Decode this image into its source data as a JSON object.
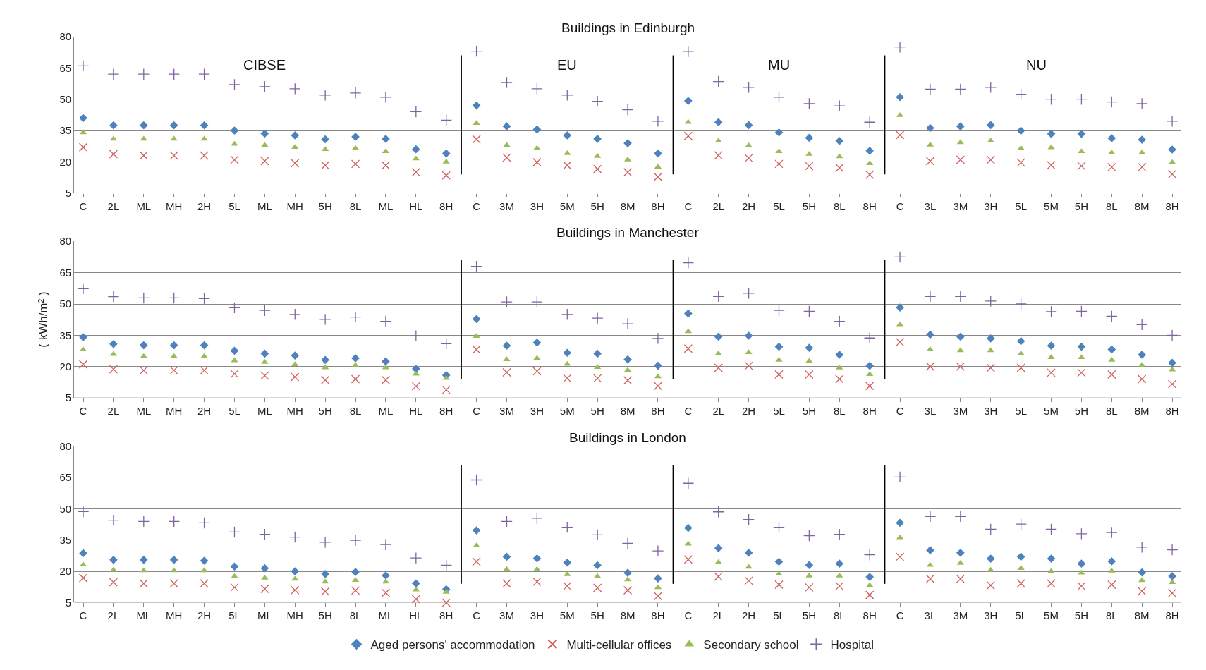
{
  "chart_data": [
    {
      "type": "scatter",
      "title": "Buildings in Edinburgh",
      "categories": [
        "C",
        "2L",
        "ML",
        "MH",
        "2H",
        "5L",
        "ML",
        "MH",
        "5H",
        "8L",
        "ML",
        "HL",
        "8H",
        "C",
        "3M",
        "3H",
        "5M",
        "5H",
        "8M",
        "8H",
        "C",
        "2L",
        "2H",
        "5L",
        "5H",
        "8L",
        "8H",
        "C",
        "3L",
        "3M",
        "3H",
        "5L",
        "5M",
        "5H",
        "8L",
        "8M",
        "8H"
      ],
      "ylim": [
        5,
        80
      ],
      "yticks": [
        5,
        20,
        35,
        50,
        65,
        80
      ],
      "grid": "y",
      "legend": "bottom",
      "annotations": [
        "CIBSE",
        "EU",
        "MU",
        "NU"
      ],
      "series": [
        {
          "name": "Aged persons' accommodation",
          "color": "#4f81bd",
          "marker": "diamond",
          "values": [
            41,
            37.5,
            37.5,
            37.5,
            37.5,
            35,
            33.5,
            32.7,
            30.8,
            32,
            31,
            26,
            24,
            47,
            37,
            35.5,
            32.7,
            31,
            28.9,
            24,
            49.2,
            39,
            37.6,
            34.1,
            31.5,
            30,
            25.3,
            51,
            36.2,
            37,
            37.6,
            34.9,
            33.4,
            33.4,
            31.3,
            30.6,
            25.9
          ]
        },
        {
          "name": "Multi-cellular offices",
          "color": "#d0605e",
          "marker": "x",
          "values": [
            27,
            23.7,
            23,
            23,
            23,
            21,
            20.4,
            19.4,
            18.3,
            19,
            18.3,
            15,
            13.5,
            30.8,
            22,
            19.8,
            18.3,
            16.5,
            15,
            12.8,
            32.4,
            23.1,
            21.8,
            19,
            18,
            17.1,
            13.8,
            32.8,
            20.3,
            21,
            21,
            19.7,
            18.4,
            18,
            17.5,
            17.5,
            14.1
          ]
        },
        {
          "name": "Secondary school",
          "color": "#9bbb59",
          "marker": "triangle",
          "values": [
            34,
            31,
            31,
            31,
            31,
            28.5,
            28,
            27,
            26,
            26.5,
            25,
            21.5,
            20,
            38.5,
            28,
            26.5,
            24,
            22.7,
            21,
            17.5,
            39,
            30,
            27.8,
            25,
            23.7,
            22.5,
            19.2,
            42.3,
            28.1,
            29.3,
            30,
            26.5,
            26.8,
            25,
            24.4,
            24.4,
            19.7
          ]
        },
        {
          "name": "Hospital",
          "color": "#8064a2",
          "marker": "cross",
          "values": [
            66,
            62,
            62,
            62,
            62,
            57,
            56,
            55,
            52,
            53,
            51,
            44,
            40,
            73,
            58,
            55,
            52,
            49,
            45,
            39.5,
            72.9,
            58.5,
            55.7,
            51,
            47.9,
            46.8,
            39,
            75,
            54.8,
            54.8,
            55.7,
            52.4,
            50,
            50,
            48.7,
            47.9,
            39.5
          ]
        }
      ]
    },
    {
      "type": "scatter",
      "title": "Buildings in Manchester",
      "ylabel": "( kWh/m² )",
      "categories": [
        "C",
        "2L",
        "ML",
        "MH",
        "2H",
        "5L",
        "ML",
        "MH",
        "5H",
        "8L",
        "ML",
        "HL",
        "8H",
        "C",
        "3M",
        "3H",
        "5M",
        "5H",
        "8M",
        "8H",
        "C",
        "2L",
        "2H",
        "5L",
        "5H",
        "8L",
        "8H",
        "C",
        "3L",
        "3M",
        "3H",
        "5L",
        "5M",
        "5H",
        "8L",
        "8M",
        "8H"
      ],
      "ylim": [
        5,
        80
      ],
      "yticks": [
        5,
        20,
        35,
        50,
        65,
        80
      ],
      "grid": "y",
      "series": [
        {
          "color": "#4f81bd",
          "marker": "diamond",
          "values": [
            34.1,
            30.8,
            30.2,
            30.2,
            30.2,
            27.6,
            26.2,
            25.3,
            23.2,
            24,
            22.5,
            18.9,
            15.9,
            42.8,
            30,
            31.5,
            26.6,
            26.2,
            23.4,
            20.4,
            45.4,
            34.3,
            34.8,
            29.5,
            29,
            25.7,
            20.4,
            48.3,
            35.3,
            34.3,
            33.5,
            32.2,
            30,
            29.5,
            28.2,
            25.7,
            21.8
          ]
        },
        {
          "color": "#d0605e",
          "marker": "x",
          "values": [
            21,
            18.7,
            18.2,
            18.2,
            18.2,
            16.5,
            15.7,
            15,
            13.6,
            14,
            13.6,
            10.6,
            8.9,
            28.1,
            17.2,
            17.8,
            14.4,
            14.4,
            13.4,
            10.7,
            28.6,
            19.4,
            20.4,
            16.2,
            16.2,
            14,
            10.7,
            31.7,
            20,
            20,
            19.4,
            19.4,
            17.1,
            17.1,
            16.2,
            14,
            11.6
          ]
        },
        {
          "color": "#9bbb59",
          "marker": "triangle",
          "values": [
            28.1,
            25.9,
            24.9,
            24.9,
            24.9,
            22.9,
            22.1,
            21,
            19.5,
            20.6,
            19.5,
            16.5,
            14.4,
            34.5,
            23.4,
            24,
            21.2,
            19.7,
            18.2,
            15.2,
            36.8,
            26.2,
            26.8,
            23.1,
            22.6,
            19.4,
            16.3,
            40.1,
            28.2,
            27.7,
            27.7,
            26.2,
            24.4,
            24.4,
            23.1,
            20.7,
            18.5
          ]
        },
        {
          "color": "#8064a2",
          "marker": "cross",
          "values": [
            57.3,
            53.5,
            52.9,
            52.9,
            52.6,
            48.2,
            46.9,
            45,
            42.6,
            43.7,
            41.7,
            34.7,
            31,
            68,
            51,
            51,
            45,
            43.2,
            40.5,
            33.5,
            69.7,
            53.6,
            55.1,
            46.9,
            46.5,
            41.7,
            33.7,
            72.5,
            53.6,
            53.6,
            51.4,
            50,
            46.3,
            46.5,
            44.1,
            40.1,
            35
          ]
        }
      ]
    },
    {
      "type": "scatter",
      "title": "Buildings in London",
      "categories": [
        "C",
        "2L",
        "ML",
        "MH",
        "2H",
        "5L",
        "ML",
        "MH",
        "5H",
        "8L",
        "ML",
        "HL",
        "8H",
        "C",
        "3M",
        "3H",
        "5M",
        "5H",
        "8M",
        "8H",
        "C",
        "2L",
        "2H",
        "5L",
        "5H",
        "8L",
        "8H",
        "C",
        "3L",
        "3M",
        "3H",
        "5L",
        "5M",
        "5H",
        "8L",
        "8M",
        "8H"
      ],
      "ylim": [
        5,
        80
      ],
      "yticks": [
        5,
        20,
        35,
        50,
        65,
        80
      ],
      "grid": "y",
      "series": [
        {
          "color": "#4f81bd",
          "marker": "diamond",
          "values": [
            28.7,
            25.5,
            25.5,
            25.5,
            25.1,
            22.3,
            21.5,
            20,
            18.7,
            19.7,
            18,
            14.2,
            11.4,
            39.6,
            27,
            26.2,
            24.2,
            22.9,
            19.3,
            16.6,
            40.8,
            31.1,
            28.9,
            24.6,
            23,
            23.7,
            17.3,
            43.2,
            30.1,
            28.9,
            26.1,
            27,
            26.1,
            23.7,
            24.8,
            19.5,
            17.7
          ]
        },
        {
          "color": "#d0605e",
          "marker": "x",
          "values": [
            16.8,
            14.8,
            14.2,
            14.2,
            14.2,
            12.3,
            11.6,
            11,
            10.3,
            10.8,
            9.7,
            6.7,
            5,
            24.7,
            14.2,
            15,
            12.9,
            12.1,
            10.9,
            8.1,
            25.7,
            17.5,
            15.5,
            13.6,
            12.3,
            12.9,
            8.7,
            27,
            16.4,
            16.4,
            13.3,
            14.2,
            14.2,
            12.9,
            13.6,
            10.5,
            9.6
          ]
        },
        {
          "color": "#9bbb59",
          "marker": "triangle",
          "values": [
            23.2,
            20.6,
            20.4,
            20.4,
            20.4,
            17.6,
            16.8,
            16.3,
            15,
            15.7,
            15,
            11.2,
            10.1,
            32.3,
            21,
            21,
            18.5,
            17.6,
            16,
            12.3,
            33.1,
            24.3,
            22.1,
            18.8,
            17.8,
            17.8,
            13.3,
            36.2,
            23,
            23.9,
            20.6,
            21.5,
            20,
            19.3,
            20.2,
            15.6,
            14.7
          ]
        },
        {
          "color": "#8064a2",
          "marker": "cross",
          "values": [
            48.6,
            44.5,
            43.9,
            43.9,
            43.2,
            38.8,
            37.7,
            36.4,
            33.9,
            34.9,
            32.8,
            26.4,
            22.9,
            63.8,
            43.9,
            45.4,
            41.1,
            37.5,
            33.4,
            29.8,
            62.2,
            48.5,
            44.8,
            41.1,
            37.1,
            37.7,
            27.9,
            65.2,
            46.3,
            46.3,
            40.2,
            42.6,
            40.2,
            38,
            38.6,
            31.6,
            30.3
          ]
        }
      ]
    }
  ]
}
